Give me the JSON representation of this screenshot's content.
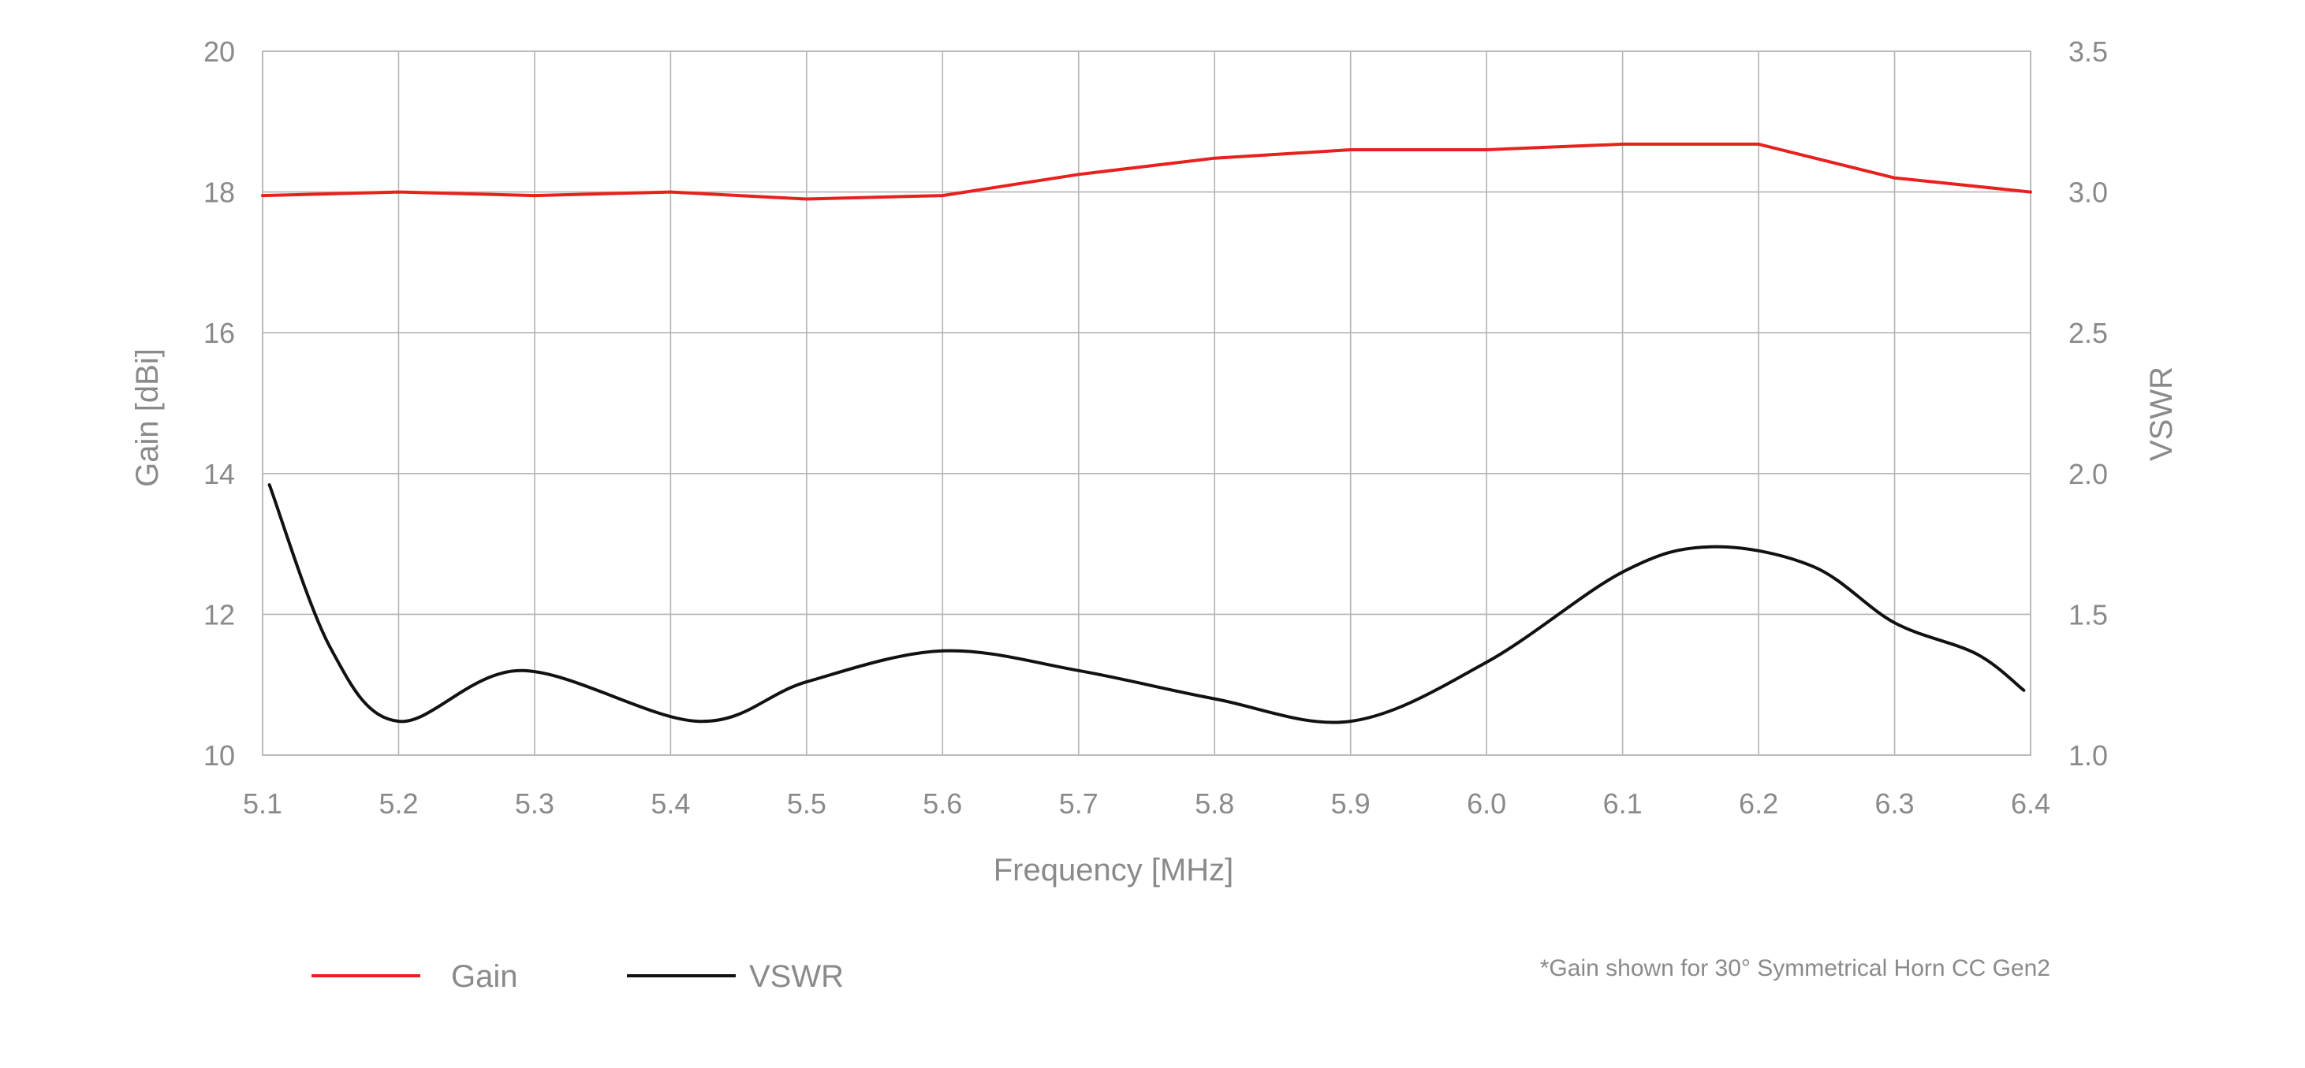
{
  "chart_data": {
    "type": "line",
    "title": "",
    "xlabel": "Frequency [MHz]",
    "ylabel": "Gain [dBi]",
    "y2label": "VSWR",
    "xlim": [
      5.1,
      6.4
    ],
    "ylim": [
      10,
      20
    ],
    "y2lim": [
      1.0,
      3.5
    ],
    "x_ticks": [
      "5.1",
      "5.2",
      "5.3",
      "5.4",
      "5.5",
      "5.6",
      "5.7",
      "5.8",
      "5.9",
      "6.0",
      "6.1",
      "6.2",
      "6.3",
      "6.4"
    ],
    "y_ticks": [
      "10",
      "12",
      "14",
      "16",
      "18",
      "20"
    ],
    "y2_ticks": [
      "1.0",
      "1.5",
      "2.0",
      "2.5",
      "3.0",
      "3.5"
    ],
    "grid": true,
    "legend_position": "bottom-left",
    "series": [
      {
        "name": "Gain",
        "axis": "left",
        "color": "#e8211f",
        "smooth": false,
        "x": [
          5.1,
          5.2,
          5.3,
          5.4,
          5.5,
          5.6,
          5.7,
          5.8,
          5.9,
          6.0,
          6.1,
          6.2,
          6.3,
          6.4
        ],
        "values": [
          17.95,
          18.0,
          17.95,
          18.0,
          17.9,
          17.95,
          18.25,
          18.48,
          18.6,
          18.6,
          18.68,
          18.68,
          18.2,
          18.0
        ]
      },
      {
        "name": "VSWR",
        "axis": "right",
        "color": "#111111",
        "smooth": true,
        "x": [
          5.105,
          5.15,
          5.2,
          5.29,
          5.42,
          5.5,
          5.6,
          5.7,
          5.8,
          5.9,
          6.0,
          6.1,
          6.165,
          6.24,
          6.3,
          6.36,
          6.395
        ],
        "values": [
          1.96,
          1.38,
          1.12,
          1.3,
          1.12,
          1.26,
          1.37,
          1.3,
          1.2,
          1.12,
          1.33,
          1.65,
          1.74,
          1.67,
          1.47,
          1.36,
          1.23
        ]
      }
    ],
    "annotations": [
      "*Gain shown for 30° Symmetrical Horn CC Gen2"
    ]
  }
}
